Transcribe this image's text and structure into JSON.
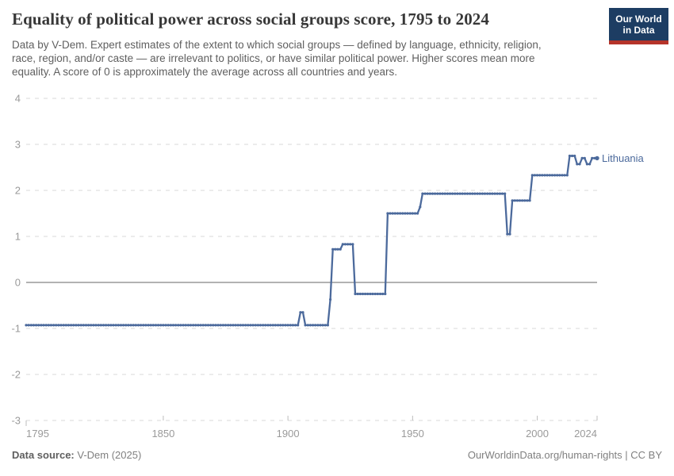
{
  "header": {
    "title": "Equality of political power across social groups score, 1795 to 2024",
    "subtitle_lines": [
      "Data by V-Dem. Expert estimates of the extent to which social groups — defined by language, ethnicity, religion,",
      "race, region, and/or caste — are irrelevant to politics, or have similar political power. Higher scores mean more",
      "equality. A score of 0 is approximately the average across all countries and years."
    ],
    "logo": {
      "line1": "Our World",
      "line2": "in Data",
      "bg_color": "#1d3d63",
      "accent_color": "#b5342a"
    }
  },
  "chart_data": {
    "type": "line",
    "title": "Equality of political power across social groups score, 1795 to 2024",
    "xlabel": "",
    "ylabel": "",
    "x": {
      "min": 1795,
      "max": 2024,
      "ticks": [
        1795,
        1850,
        1900,
        1950,
        2000,
        2024
      ]
    },
    "y": {
      "min": -3,
      "max": 4,
      "ticks": [
        4,
        3,
        2,
        1,
        0,
        -1,
        -2,
        -3
      ]
    },
    "grid": "horizontal dashed, solid line at 0",
    "legend_position": "end-of-line label",
    "colors": {
      "line": "#4c6a9c",
      "gridline": "#d9d9d9",
      "zero_line": "#858585",
      "tick_mark": "#bdbdbd",
      "axis_text": "#9a9a9a"
    },
    "series": [
      {
        "name": "Lithuania",
        "color": "#4c6a9c",
        "steps": [
          {
            "from": 1795,
            "to": 1904,
            "value": -0.93
          },
          {
            "from": 1905,
            "to": 1906,
            "value": -0.65
          },
          {
            "from": 1907,
            "to": 1916,
            "value": -0.93
          },
          {
            "from": 1917,
            "to": 1917,
            "value": -0.37
          },
          {
            "from": 1918,
            "to": 1921,
            "value": 0.72
          },
          {
            "from": 1922,
            "to": 1926,
            "value": 0.83
          },
          {
            "from": 1927,
            "to": 1939,
            "value": -0.25
          },
          {
            "from": 1940,
            "to": 1952,
            "value": 1.5
          },
          {
            "from": 1953,
            "to": 1953,
            "value": 1.64
          },
          {
            "from": 1954,
            "to": 1987,
            "value": 1.93
          },
          {
            "from": 1988,
            "to": 1989,
            "value": 1.05
          },
          {
            "from": 1990,
            "to": 1997,
            "value": 1.78
          },
          {
            "from": 1998,
            "to": 2012,
            "value": 2.33
          },
          {
            "from": 2013,
            "to": 2015,
            "value": 2.75
          },
          {
            "from": 2016,
            "to": 2017,
            "value": 2.57
          },
          {
            "from": 2018,
            "to": 2019,
            "value": 2.7
          },
          {
            "from": 2020,
            "to": 2021,
            "value": 2.57
          },
          {
            "from": 2022,
            "to": 2024,
            "value": 2.7
          }
        ]
      }
    ]
  },
  "footer": {
    "source_label": "Data source:",
    "source_value": " V-Dem (2025)",
    "right_text": "OurWorldinData.org/human-rights | CC BY"
  }
}
